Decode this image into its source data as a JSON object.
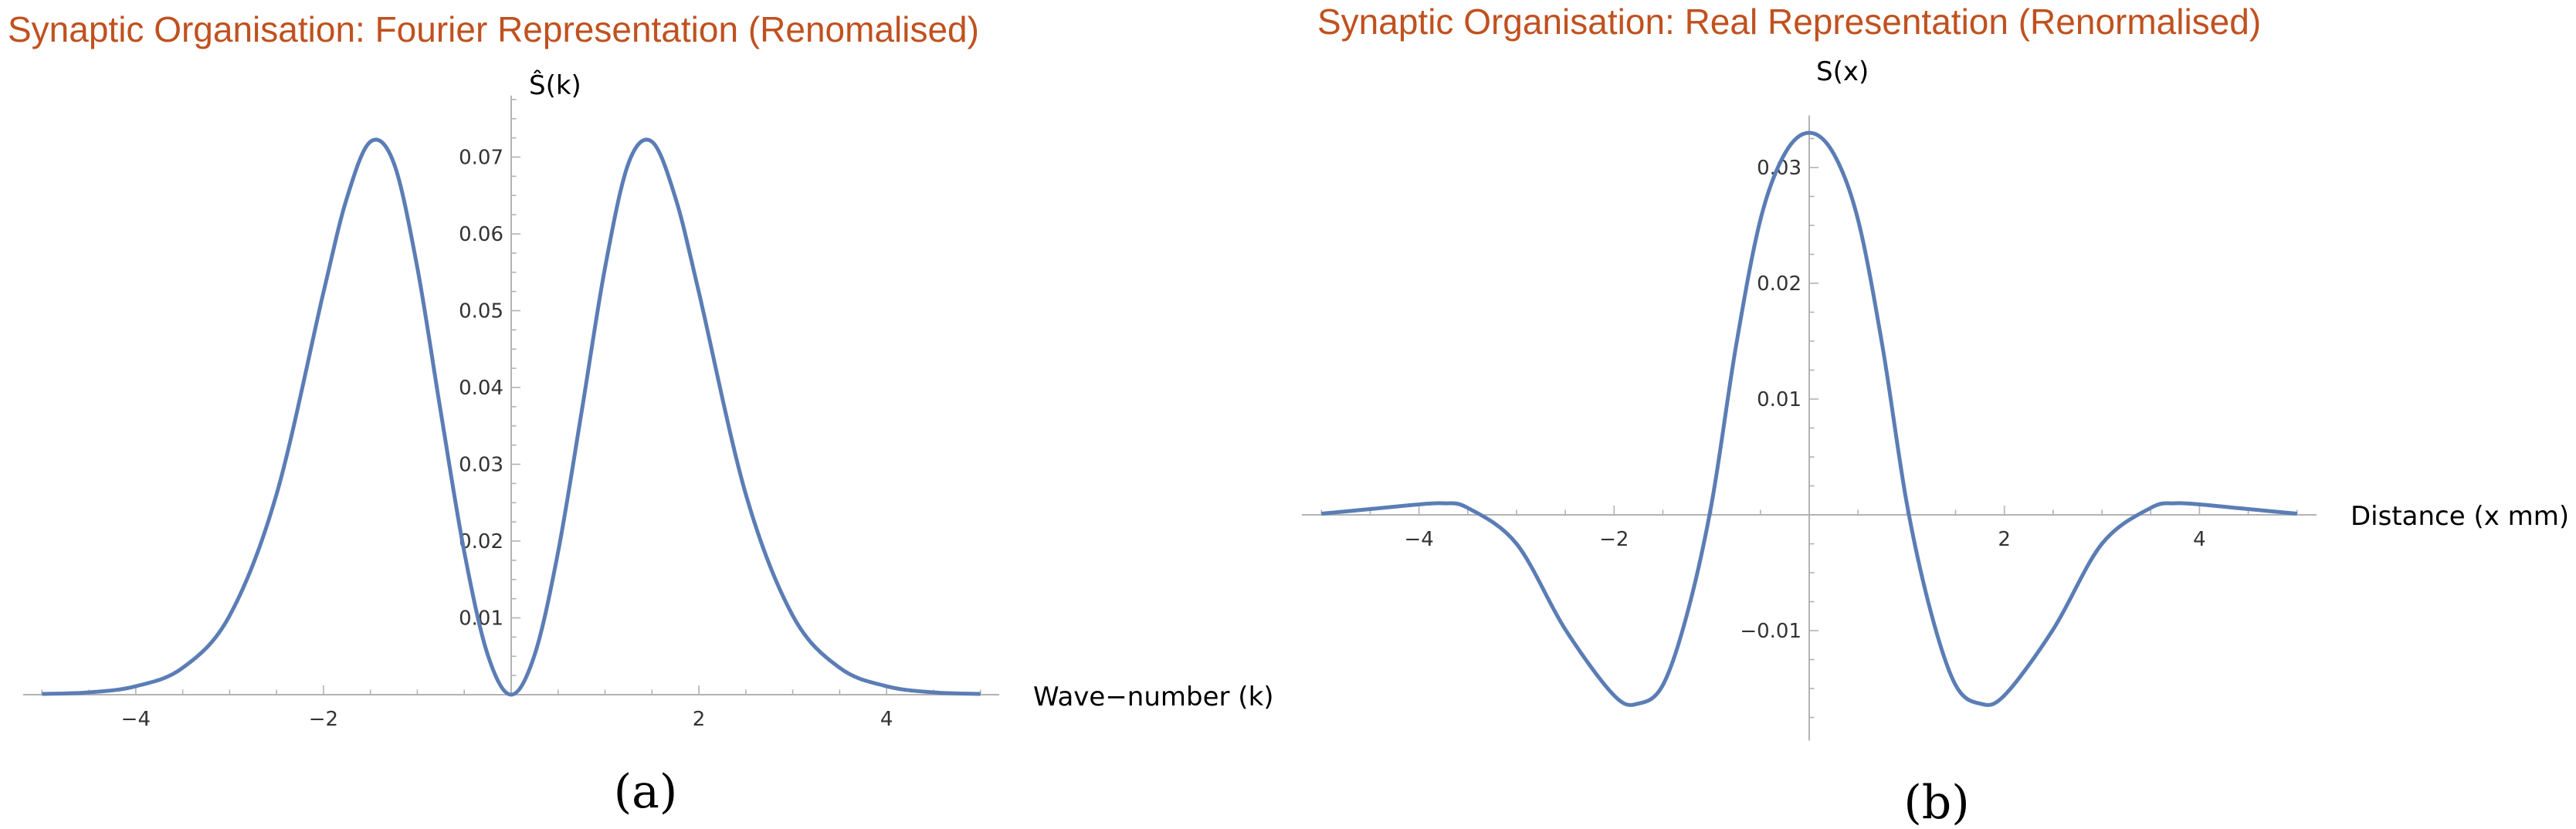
{
  "chart_data": [
    {
      "type": "line",
      "title": "Synaptic Organisation: Fourier Representation (Renomalised)",
      "xlabel": "Wave−number (k)",
      "ylabel": "Ŝ(k)",
      "caption": "(a)",
      "xlim": [
        -5.2,
        5.2
      ],
      "ylim": [
        0,
        0.078
      ],
      "xticks": [
        -4,
        -2,
        2,
        4
      ],
      "xtick_labels": [
        "−4",
        "−2",
        "2",
        "4"
      ],
      "yticks": [
        0.01,
        0.02,
        0.03,
        0.04,
        0.05,
        0.06,
        0.07
      ],
      "ytick_labels": [
        "0.01",
        "0.02",
        "0.03",
        "0.04",
        "0.05",
        "0.06",
        "0.07"
      ],
      "grid": false,
      "series": [
        {
          "color": "#5b7db5",
          "x": [
            -5,
            -4.5,
            -4,
            -3.5,
            -3,
            -2.5,
            -2,
            -1.75,
            -1.5,
            -1.25,
            -1,
            -0.75,
            -0.5,
            -0.25,
            0,
            0.25,
            0.5,
            0.75,
            1,
            1.25,
            1.5,
            1.75,
            2,
            2.5,
            3,
            3.5,
            4,
            4.5,
            5
          ],
          "y": [
            0.0001,
            0.0003,
            0.0011,
            0.0035,
            0.0103,
            0.0261,
            0.0524,
            0.0647,
            0.072,
            0.0692,
            0.0556,
            0.0368,
            0.0186,
            0.0052,
            0,
            0.0052,
            0.0186,
            0.0368,
            0.0556,
            0.0692,
            0.072,
            0.0647,
            0.0524,
            0.0261,
            0.0103,
            0.0035,
            0.0011,
            0.0003,
            0.0001
          ]
        }
      ]
    },
    {
      "type": "line",
      "title": "Synaptic Organisation: Real Representation (Renormalised)",
      "xlabel": "Distance (x mm)",
      "ylabel": "S(x)",
      "caption": "(b)",
      "xlim": [
        -5.2,
        5.2
      ],
      "ylim": [
        -0.0195,
        0.0345
      ],
      "xticks": [
        -4,
        -2,
        2,
        4
      ],
      "xtick_labels": [
        "−4",
        "−2",
        "2",
        "4"
      ],
      "yticks": [
        -0.01,
        0.01,
        0.02,
        0.03
      ],
      "ytick_labels": [
        "−0.01",
        "0.01",
        "0.02",
        "0.03"
      ],
      "grid": false,
      "series": [
        {
          "color": "#5b7db5",
          "x": [
            -5,
            -4.5,
            -4,
            -3.75,
            -3.5,
            -3,
            -2.5,
            -2,
            -1.75,
            -1.5,
            -1.25,
            -1,
            -0.75,
            -0.5,
            -0.25,
            0,
            0.25,
            0.5,
            0.75,
            1,
            1.25,
            1.5,
            1.75,
            2,
            2.5,
            3,
            3.5,
            3.75,
            4,
            4.5,
            5
          ],
          "y": [
            0.0001,
            0.0005,
            0.0009,
            0.001,
            0.0006,
            -0.0025,
            -0.0099,
            -0.0156,
            -0.0163,
            -0.0147,
            -0.0085,
            0.001,
            0.0146,
            0.0255,
            0.0312,
            0.033,
            0.0312,
            0.0255,
            0.0146,
            0.001,
            -0.0085,
            -0.0147,
            -0.0163,
            -0.0156,
            -0.0099,
            -0.0025,
            0.0006,
            0.001,
            0.0009,
            0.0005,
            0.0001
          ]
        }
      ]
    }
  ]
}
